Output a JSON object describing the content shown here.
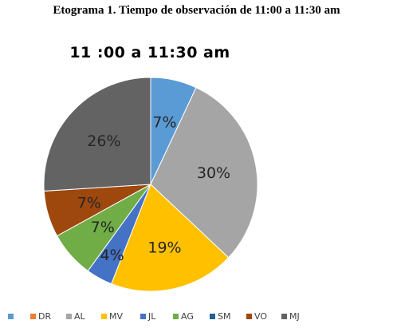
{
  "figure_caption": "Etograma 1. Tiempo de observación de 11:00 a 11:30 am",
  "chart_data": {
    "type": "pie",
    "title": "11 :00 a 11:30 am",
    "slices": [
      {
        "name": "",
        "value": 7,
        "label": "7%",
        "color": "#5b9bd5"
      },
      {
        "name": "DR",
        "value": 0,
        "label": "",
        "color": "#ed7d31"
      },
      {
        "name": "AL",
        "value": 30,
        "label": "30%",
        "color": "#a5a5a5"
      },
      {
        "name": "MV",
        "value": 19,
        "label": "19%",
        "color": "#ffc000"
      },
      {
        "name": "JL",
        "value": 4,
        "label": "4%",
        "color": "#4472c4"
      },
      {
        "name": "AG",
        "value": 7,
        "label": "7%",
        "color": "#70ad47"
      },
      {
        "name": "SM",
        "value": 0,
        "label": "",
        "color": "#255e91"
      },
      {
        "name": "VO",
        "value": 7,
        "label": "7%",
        "color": "#9e480e"
      },
      {
        "name": "MJ",
        "value": 26,
        "label": "26%",
        "color": "#636363"
      }
    ],
    "start_angle_deg": 0,
    "direction": "clockwise",
    "legend_position": "bottom"
  }
}
